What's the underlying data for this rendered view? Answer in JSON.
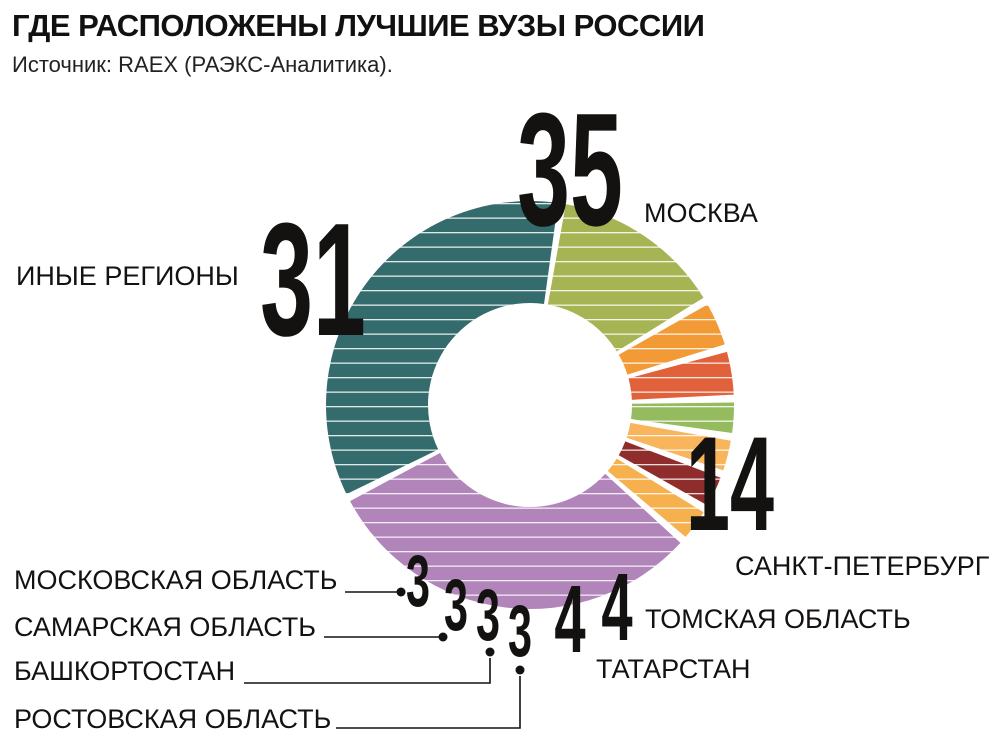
{
  "title": "ГДЕ РАСПОЛОЖЕНЫ ЛУЧШИЕ ВУЗЫ РОССИИ",
  "subtitle": "Источник: RAEX (РАЭКС-Аналитика).",
  "chart_data": {
    "type": "pie",
    "title": "ГДЕ РАСПОЛОЖЕНЫ ЛУЧШИЕ ВУЗЫ РОССИИ",
    "subtitle": "Источник: RAEX (РАЭКС-Аналитика).",
    "style": "donut",
    "slices": [
      {
        "label": "МОСКВА",
        "value": 35,
        "color": "#346b6d"
      },
      {
        "label": "САНКТ-ПЕТЕРБУРГ",
        "value": 14,
        "color": "#a7b453"
      },
      {
        "label": "ТОМСКАЯ ОБЛАСТЬ",
        "value": 4,
        "color": "#f29a36"
      },
      {
        "label": "ТАТАРСТАН",
        "value": 4,
        "color": "#e0613a"
      },
      {
        "label": "РОСТОВСКАЯ ОБЛАСТЬ",
        "value": 3,
        "color": "#94bb5e"
      },
      {
        "label": "БАШКОРТОСТАН",
        "value": 3,
        "color": "#f8b55b"
      },
      {
        "label": "САМАРСКАЯ ОБЛАСТЬ",
        "value": 3,
        "color": "#8e2d2b"
      },
      {
        "label": "МОСКОВСКАЯ ОБЛАСТЬ",
        "value": 3,
        "color": "#f6b14e"
      },
      {
        "label": "ИНЫЕ РЕГИОНЫ",
        "value": 31,
        "color": "#b184ba"
      }
    ]
  }
}
